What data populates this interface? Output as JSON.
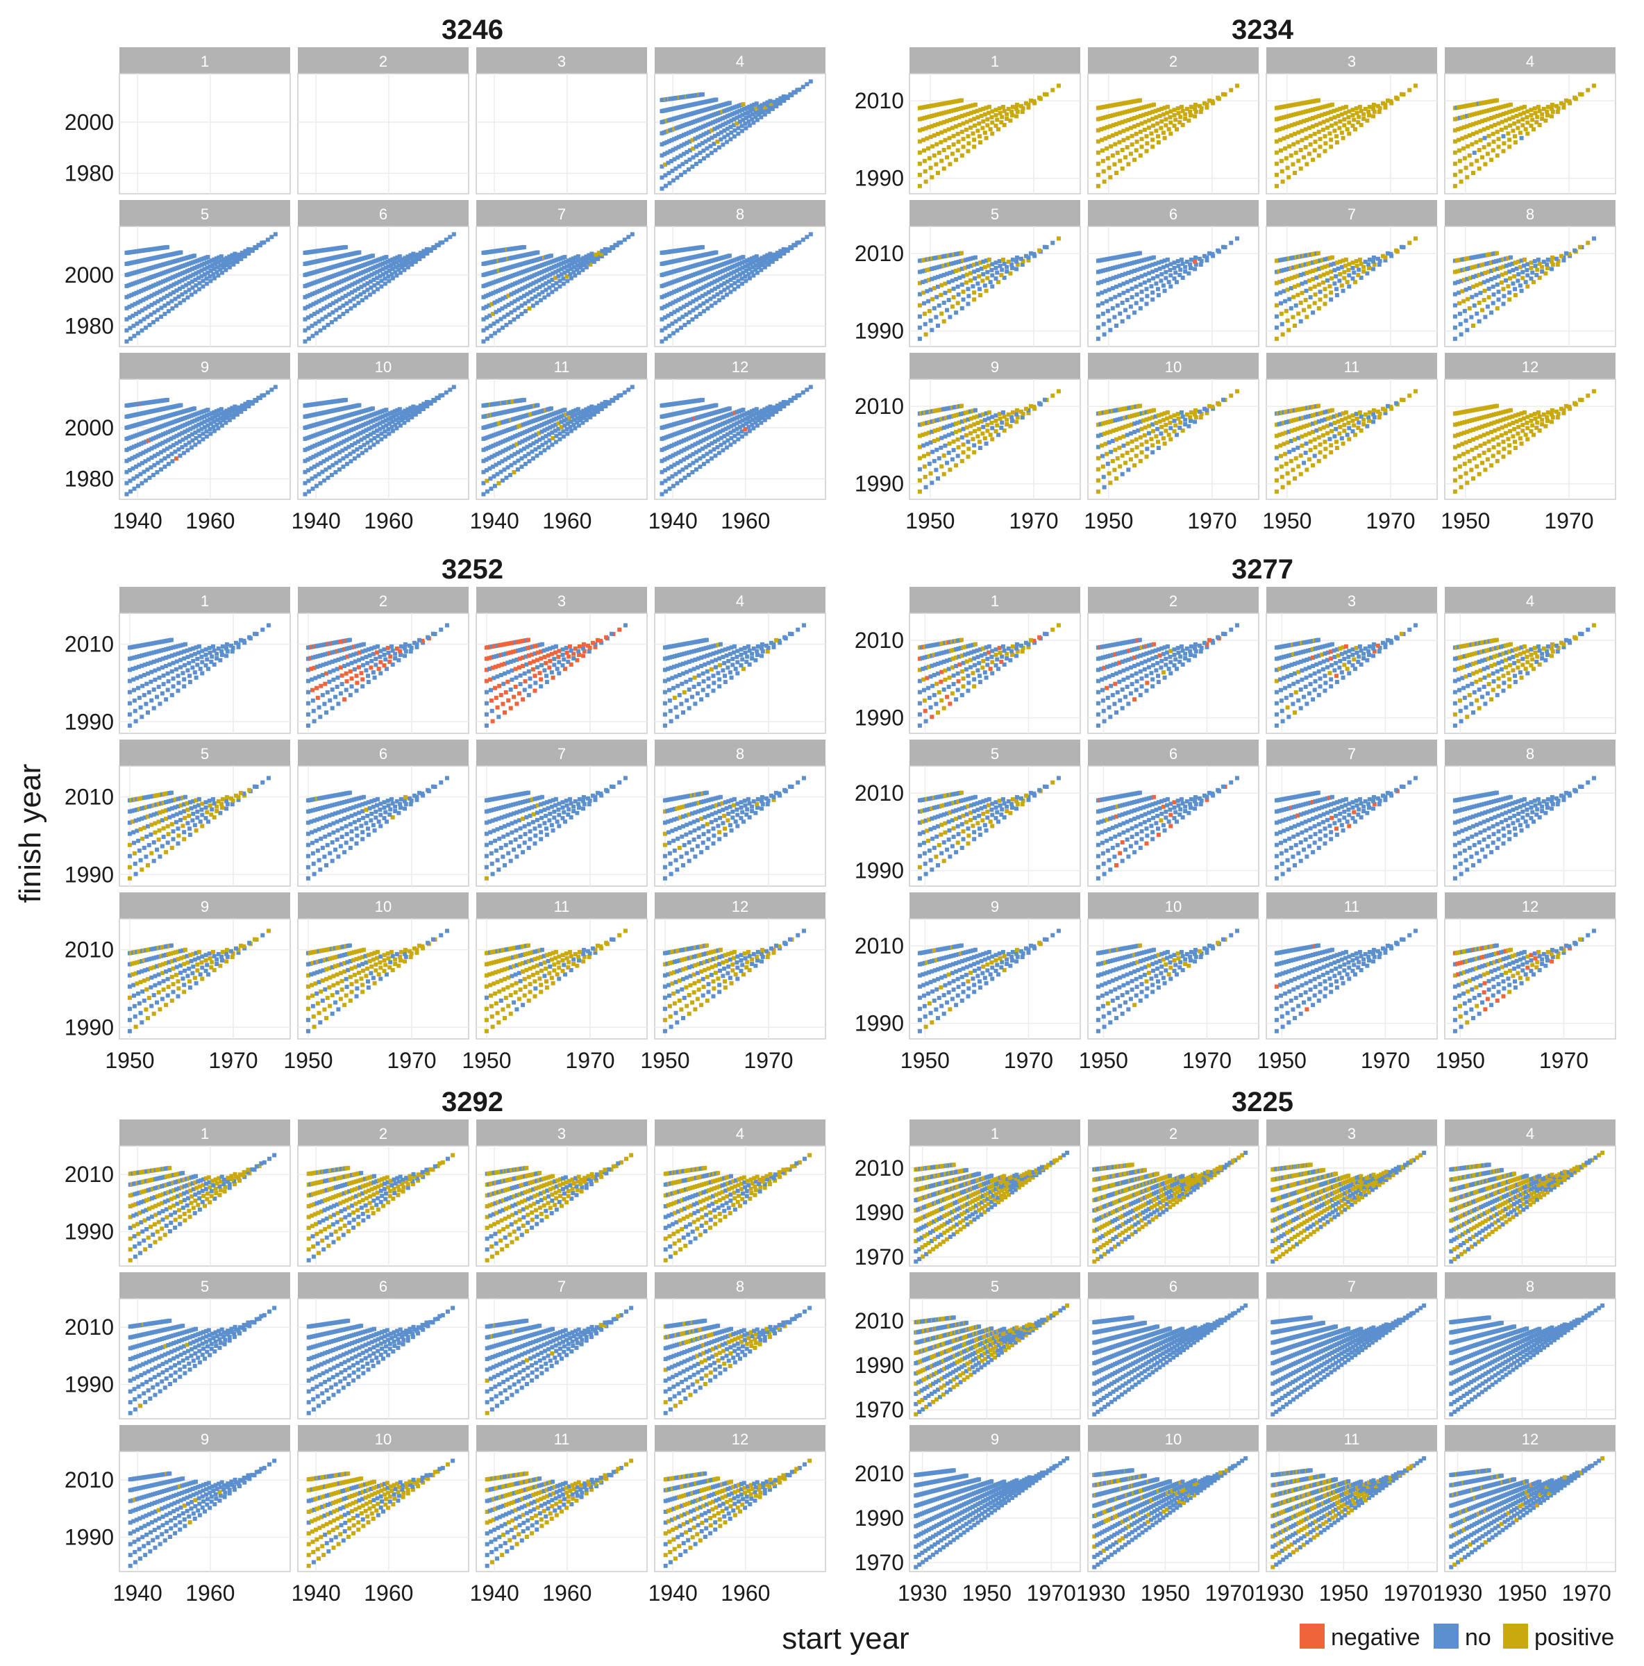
{
  "figure": {
    "xlabel": "start year",
    "ylabel": "finish year"
  },
  "legend": {
    "items": [
      {
        "label": "negative",
        "color": "#f0643c"
      },
      {
        "label": "no",
        "color": "#5b8fce"
      },
      {
        "label": "positive",
        "color": "#c9a90e"
      }
    ]
  },
  "colors": {
    "strip": "#b3b3b3",
    "strip_text": "#ffffff",
    "panel_border": "#cccccc",
    "grid": "#ececec",
    "axis_text": "#1a1a1a"
  },
  "chart_data": [
    {
      "type": "scatter",
      "title": "3246",
      "xlabel": "start year",
      "ylabel": "finish year",
      "xlim": [
        1935,
        1982
      ],
      "ylim": [
        1972,
        2019
      ],
      "x_ticks": [
        1940,
        1960
      ],
      "y_ticks": [
        1980,
        2000
      ],
      "x_tick_labels": [
        "1940",
        "1960"
      ],
      "y_tick_labels": [
        "1980",
        "2000"
      ],
      "points_per_line": 40,
      "lines": 9,
      "span_start": 1937,
      "panels": [
        {
          "label": "1",
          "empty": true
        },
        {
          "label": "2",
          "empty": true
        },
        {
          "label": "3",
          "empty": true
        },
        {
          "label": "4",
          "positive_share": 0.05
        },
        {
          "label": "5",
          "positive_share": 0
        },
        {
          "label": "6",
          "positive_share": 0
        },
        {
          "label": "7",
          "positive_share": 0.03
        },
        {
          "label": "8",
          "positive_share": 0
        },
        {
          "label": "9",
          "negative_share": 0.01
        },
        {
          "label": "10",
          "positive_share": 0
        },
        {
          "label": "11",
          "positive_share": 0.08
        },
        {
          "label": "12",
          "negative_share": 0.01
        }
      ]
    },
    {
      "type": "scatter",
      "title": "3234",
      "xlabel": "start year",
      "ylabel": "finish year",
      "xlim": [
        1946,
        1979
      ],
      "ylim": [
        1986,
        2017
      ],
      "x_ticks": [
        1950,
        1970
      ],
      "y_ticks": [
        1990,
        2010
      ],
      "x_tick_labels": [
        "1950",
        "1970"
      ],
      "y_tick_labels": [
        "1990",
        "2010"
      ],
      "points_per_line": 24,
      "lines": 8,
      "span_start": 1948,
      "panels": [
        {
          "label": "1",
          "positive_share": 1.0
        },
        {
          "label": "2",
          "positive_share": 1.0
        },
        {
          "label": "3",
          "positive_share": 1.0
        },
        {
          "label": "4",
          "positive_share": 0.97
        },
        {
          "label": "5",
          "positive_share": 0.3
        },
        {
          "label": "6",
          "positive_share": 0.0,
          "negative_share": 0.01
        },
        {
          "label": "7",
          "positive_share": 0.55
        },
        {
          "label": "8",
          "positive_share": 0.35
        },
        {
          "label": "9",
          "positive_share": 0.6
        },
        {
          "label": "10",
          "positive_share": 0.6
        },
        {
          "label": "11",
          "positive_share": 0.7
        },
        {
          "label": "12",
          "positive_share": 1.0
        }
      ]
    },
    {
      "type": "scatter",
      "title": "3252",
      "xlabel": "start year",
      "ylabel": "finish year",
      "xlim": [
        1948,
        1981
      ],
      "ylim": [
        1987,
        2018
      ],
      "x_ticks": [
        1950,
        1970
      ],
      "y_ticks": [
        1990,
        2010
      ],
      "x_tick_labels": [
        "1950",
        "1970"
      ],
      "y_tick_labels": [
        "1990",
        "2010"
      ],
      "points_per_line": 24,
      "lines": 8,
      "span_start": 1950,
      "panels": [
        {
          "label": "1",
          "positive_share": 0
        },
        {
          "label": "2",
          "negative_share": 0.2
        },
        {
          "label": "3",
          "negative_share": 0.55
        },
        {
          "label": "4",
          "positive_share": 0.03
        },
        {
          "label": "5",
          "positive_share": 0.45
        },
        {
          "label": "6",
          "positive_share": 0.02
        },
        {
          "label": "7",
          "positive_share": 0.05
        },
        {
          "label": "8",
          "positive_share": 0.15
        },
        {
          "label": "9",
          "positive_share": 0.45
        },
        {
          "label": "10",
          "positive_share": 0.65
        },
        {
          "label": "11",
          "positive_share": 0.75
        },
        {
          "label": "12",
          "positive_share": 0.55
        }
      ]
    },
    {
      "type": "scatter",
      "title": "3277",
      "xlabel": "start year",
      "ylabel": "finish year",
      "xlim": [
        1947,
        1980
      ],
      "ylim": [
        1986,
        2017
      ],
      "x_ticks": [
        1950,
        1970
      ],
      "y_ticks": [
        1990,
        2010
      ],
      "x_tick_labels": [
        "1950",
        "1970"
      ],
      "y_tick_labels": [
        "1990",
        "2010"
      ],
      "points_per_line": 24,
      "lines": 8,
      "span_start": 1949,
      "panels": [
        {
          "label": "1",
          "positive_share": 0.25,
          "negative_share": 0.12
        },
        {
          "label": "2",
          "positive_share": 0.02,
          "negative_share": 0.12
        },
        {
          "label": "3",
          "positive_share": 0.12,
          "negative_share": 0.04
        },
        {
          "label": "4",
          "positive_share": 0.5
        },
        {
          "label": "5",
          "positive_share": 0.25
        },
        {
          "label": "6",
          "positive_share": 0.02,
          "negative_share": 0.05
        },
        {
          "label": "7",
          "negative_share": 0.04
        },
        {
          "label": "8",
          "positive_share": 0
        },
        {
          "label": "9",
          "positive_share": 0.15
        },
        {
          "label": "10",
          "positive_share": 0.08
        },
        {
          "label": "11",
          "negative_share": 0.02
        },
        {
          "label": "12",
          "positive_share": 0.25,
          "negative_share": 0.1
        }
      ]
    },
    {
      "type": "scatter",
      "title": "3292",
      "xlabel": "start year",
      "ylabel": "finish year",
      "xlim": [
        1935,
        1982
      ],
      "ylim": [
        1978,
        2020
      ],
      "x_ticks": [
        1940,
        1960
      ],
      "y_ticks": [
        1990,
        2010
      ],
      "x_tick_labels": [
        "1940",
        "1960"
      ],
      "y_tick_labels": [
        "1990",
        "2010"
      ],
      "points_per_line": 30,
      "lines": 9,
      "span_start": 1938,
      "panels": [
        {
          "label": "1",
          "positive_share": 0.55
        },
        {
          "label": "2",
          "positive_share": 0.6
        },
        {
          "label": "3",
          "positive_share": 0.6
        },
        {
          "label": "4",
          "positive_share": 0.6
        },
        {
          "label": "5",
          "positive_share": 0.02
        },
        {
          "label": "6",
          "positive_share": 0
        },
        {
          "label": "7",
          "positive_share": 0.05
        },
        {
          "label": "8",
          "positive_share": 0.25
        },
        {
          "label": "9",
          "positive_share": 0.03
        },
        {
          "label": "10",
          "positive_share": 0.6
        },
        {
          "label": "11",
          "positive_share": 0.5
        },
        {
          "label": "12",
          "positive_share": 0.45
        }
      ]
    },
    {
      "type": "scatter",
      "title": "3225",
      "xlabel": "start year",
      "ylabel": "finish year",
      "xlim": [
        1926,
        1979
      ],
      "ylim": [
        1966,
        2020
      ],
      "x_ticks": [
        1930,
        1950,
        1970
      ],
      "y_ticks": [
        1970,
        1990,
        2010
      ],
      "x_tick_labels": [
        "1930",
        "1950",
        "1970"
      ],
      "y_tick_labels": [
        "1970",
        "1990",
        "2010"
      ],
      "points_per_line": 45,
      "lines": 10,
      "span_start": 1928,
      "panels": [
        {
          "label": "1",
          "positive_share": 0.55
        },
        {
          "label": "2",
          "positive_share": 0.55
        },
        {
          "label": "3",
          "positive_share": 0.55
        },
        {
          "label": "4",
          "positive_share": 0.5
        },
        {
          "label": "5",
          "positive_share": 0.4
        },
        {
          "label": "6",
          "positive_share": 0
        },
        {
          "label": "7",
          "positive_share": 0
        },
        {
          "label": "8",
          "positive_share": 0
        },
        {
          "label": "9",
          "positive_share": 0
        },
        {
          "label": "10",
          "positive_share": 0.15
        },
        {
          "label": "11",
          "positive_share": 0.35
        },
        {
          "label": "12",
          "positive_share": 0.1
        }
      ]
    }
  ]
}
